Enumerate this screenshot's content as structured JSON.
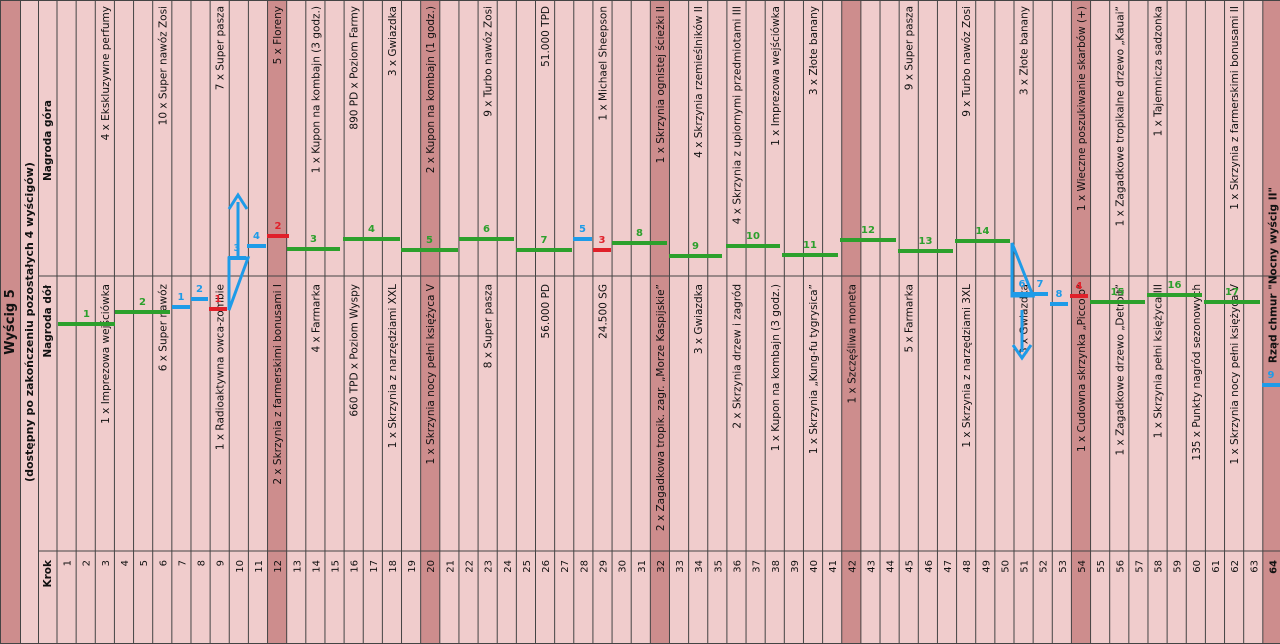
{
  "title": "Wyścig 5",
  "subtitle": "(dostępny po zakończeniu pozostałych 4 wyścigów)",
  "row_header_top": "Nagroda góra",
  "row_header_bottom": "Nagroda dół",
  "krok_label": "Krok",
  "colors": {
    "background": "#f0cccc",
    "highlight_column": "#cd8d8d",
    "grid": "#444444",
    "green": "#2ca02c",
    "blue": "#1e9be8",
    "red": "#e0202a"
  },
  "highlight_steps": [
    12,
    20,
    32,
    42,
    54,
    64
  ],
  "steps": [
    {
      "n": "1",
      "top": "",
      "bottom": ""
    },
    {
      "n": "2",
      "top": "",
      "bottom": ""
    },
    {
      "n": "3",
      "top": "4 x Ekskluzywne perfumy",
      "bottom": "1 x Imprezowa wejściówka"
    },
    {
      "n": "4",
      "top": "",
      "bottom": ""
    },
    {
      "n": "5",
      "top": "",
      "bottom": ""
    },
    {
      "n": "6",
      "top": "10 x Super nawóz Zosi",
      "bottom": "6 x Super nawóz"
    },
    {
      "n": "7",
      "top": "",
      "bottom": ""
    },
    {
      "n": "8",
      "top": "",
      "bottom": ""
    },
    {
      "n": "9",
      "top": "7 x Super pasza",
      "bottom": "1 x Radioaktywna owca-zombie"
    },
    {
      "n": "10",
      "top": "",
      "bottom": ""
    },
    {
      "n": "11",
      "top": "",
      "bottom": ""
    },
    {
      "n": "12",
      "top": "5 x Floreny",
      "bottom": "2 x Skrzynia z farmerskimi bonusami I"
    },
    {
      "n": "13",
      "top": "",
      "bottom": ""
    },
    {
      "n": "14",
      "top": "1 x Kupon na kombajn (3 godz.)",
      "bottom": "4 x Farmarka"
    },
    {
      "n": "15",
      "top": "",
      "bottom": ""
    },
    {
      "n": "16",
      "top": "890 PD x Poziom Farmy",
      "bottom": "660 TPD x Poziom Wyspy"
    },
    {
      "n": "17",
      "top": "",
      "bottom": ""
    },
    {
      "n": "18",
      "top": "3 x Gwiazdka",
      "bottom": "1 x Skrzynia z narzędziami XXL"
    },
    {
      "n": "19",
      "top": "",
      "bottom": ""
    },
    {
      "n": "20",
      "top": "2 x Kupon na kombajn (1 godz.)",
      "bottom": "1 x Skrzynia nocy pełni księżyca V"
    },
    {
      "n": "21",
      "top": "",
      "bottom": ""
    },
    {
      "n": "22",
      "top": "",
      "bottom": ""
    },
    {
      "n": "23",
      "top": "9 x Turbo nawóz Zosi",
      "bottom": "8 x Super pasza"
    },
    {
      "n": "24",
      "top": "",
      "bottom": ""
    },
    {
      "n": "25",
      "top": "",
      "bottom": ""
    },
    {
      "n": "26",
      "top": "51.000 TPD",
      "bottom": "56.000 PD"
    },
    {
      "n": "27",
      "top": "",
      "bottom": ""
    },
    {
      "n": "28",
      "top": "",
      "bottom": ""
    },
    {
      "n": "29",
      "top": "1 x Michael Sheepson",
      "bottom": "24.500 SG"
    },
    {
      "n": "30",
      "top": "",
      "bottom": ""
    },
    {
      "n": "31",
      "top": "",
      "bottom": ""
    },
    {
      "n": "32",
      "top": "1 x Skrzynia ognistej ścieżki II",
      "bottom": "2 x Zagadkowa tropik. zagr. „Morze Kaspijskie”"
    },
    {
      "n": "33",
      "top": "",
      "bottom": ""
    },
    {
      "n": "34",
      "top": "4 x Skrzynia rzemieślników II",
      "bottom": "3 x Gwiazdka"
    },
    {
      "n": "35",
      "top": "",
      "bottom": ""
    },
    {
      "n": "36",
      "top": "4 x Skrzynia z upiornymi przedmiotami III",
      "bottom": "2 x Skrzynia drzew i zagród"
    },
    {
      "n": "37",
      "top": "",
      "bottom": ""
    },
    {
      "n": "38",
      "top": "1 x Imprezowa wejściówka",
      "bottom": "1 x Kupon na kombajn (3 godz.)"
    },
    {
      "n": "39",
      "top": "",
      "bottom": ""
    },
    {
      "n": "40",
      "top": "3 x Złote banany",
      "bottom": "1 x Skrzynia „Kung-fu tygrysica”"
    },
    {
      "n": "41",
      "top": "",
      "bottom": ""
    },
    {
      "n": "42",
      "top": "",
      "bottom": "1 x Szczęśliwa moneta"
    },
    {
      "n": "43",
      "top": "",
      "bottom": ""
    },
    {
      "n": "44",
      "top": "",
      "bottom": ""
    },
    {
      "n": "45",
      "top": "9 x Super pasza",
      "bottom": "5 x Farmarka"
    },
    {
      "n": "46",
      "top": "",
      "bottom": ""
    },
    {
      "n": "47",
      "top": "",
      "bottom": ""
    },
    {
      "n": "48",
      "top": "9 x Turbo nawóz Zosi",
      "bottom": "1 x Skrzynia z narzędziami 3XL"
    },
    {
      "n": "49",
      "top": "",
      "bottom": ""
    },
    {
      "n": "50",
      "top": "",
      "bottom": ""
    },
    {
      "n": "51",
      "top": "3 x Złote banany",
      "bottom": "3 x Gwiazdka"
    },
    {
      "n": "52",
      "top": "",
      "bottom": ""
    },
    {
      "n": "53",
      "top": "",
      "bottom": ""
    },
    {
      "n": "54",
      "top": "1 x Wieczne poszukiwanie skarbów (+)",
      "bottom": "1 x Cudowna skrzynka „Piccolo”"
    },
    {
      "n": "55",
      "top": "",
      "bottom": ""
    },
    {
      "n": "56",
      "top": "1 x Zagadkowe tropikalne drzewo „Kauai”",
      "bottom": "1 x Zagadkowe drzewo „Detroit”"
    },
    {
      "n": "57",
      "top": "",
      "bottom": ""
    },
    {
      "n": "58",
      "top": "1 x Tajemnicza sadzonka",
      "bottom": "1 x Skrzynia pełni księżyca III"
    },
    {
      "n": "59",
      "top": "",
      "bottom": ""
    },
    {
      "n": "60",
      "top": "",
      "bottom": "135 x Punkty nagród sezonowych"
    },
    {
      "n": "61",
      "top": "",
      "bottom": ""
    },
    {
      "n": "62",
      "top": "1 x Skrzynia z farmerskimi bonusami II",
      "bottom": "1 x Skrzynia nocy pełni księżyca V"
    },
    {
      "n": "63",
      "top": "",
      "bottom": ""
    },
    {
      "n": "64",
      "top": "",
      "bottom": "Rząd chmur \"Nocny wyścig II\""
    }
  ],
  "path_labels": [
    {
      "text": "1",
      "color": "green"
    },
    {
      "text": "2",
      "color": "green"
    },
    {
      "text": "1",
      "color": "blue"
    },
    {
      "text": "2",
      "color": "blue"
    },
    {
      "text": "1",
      "color": "red"
    },
    {
      "text": "3",
      "color": "blue"
    },
    {
      "text": "4",
      "color": "blue"
    },
    {
      "text": "2",
      "color": "red"
    },
    {
      "text": "3",
      "color": "green"
    },
    {
      "text": "4",
      "color": "green"
    },
    {
      "text": "5",
      "color": "green"
    },
    {
      "text": "6",
      "color": "green"
    },
    {
      "text": "7",
      "color": "green"
    },
    {
      "text": "5",
      "color": "blue"
    },
    {
      "text": "3",
      "color": "red"
    },
    {
      "text": "8",
      "color": "green"
    },
    {
      "text": "9",
      "color": "green"
    },
    {
      "text": "10",
      "color": "green"
    },
    {
      "text": "11",
      "color": "green"
    },
    {
      "text": "12",
      "color": "green"
    },
    {
      "text": "13",
      "color": "green"
    },
    {
      "text": "14",
      "color": "green"
    },
    {
      "text": "6",
      "color": "blue"
    },
    {
      "text": "7",
      "color": "blue"
    },
    {
      "text": "8",
      "color": "blue"
    },
    {
      "text": "4",
      "color": "red"
    },
    {
      "text": "15",
      "color": "green"
    },
    {
      "text": "16",
      "color": "green"
    },
    {
      "text": "17",
      "color": "green"
    },
    {
      "text": "9",
      "color": "blue"
    }
  ]
}
